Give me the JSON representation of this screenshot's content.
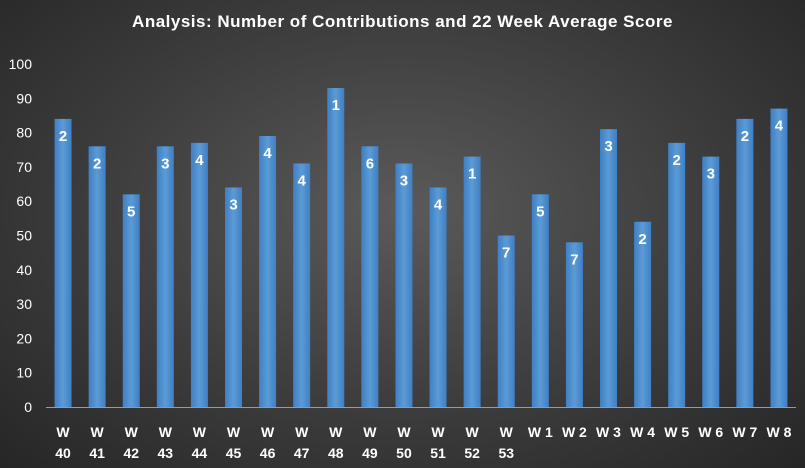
{
  "chart_data": {
    "type": "bar",
    "title": "Analysis:  Number  of  Contributions  and  22  Week  Average  Score",
    "categories": [
      "W 40",
      "W 41",
      "W 42",
      "W 43",
      "W 44",
      "W 45",
      "W 46",
      "W 47",
      "W 48",
      "W 49",
      "W 50",
      "W 51",
      "W 52",
      "W 53",
      "W 1",
      "W 2",
      "W 3",
      "W 4",
      "W 5",
      "W 6",
      "W 7",
      "W 8"
    ],
    "tick_lines": [
      [
        "W",
        "40"
      ],
      [
        "W",
        "41"
      ],
      [
        "W",
        "42"
      ],
      [
        "W",
        "43"
      ],
      [
        "W",
        "44"
      ],
      [
        "W",
        "45"
      ],
      [
        "W",
        "46"
      ],
      [
        "W",
        "47"
      ],
      [
        "W",
        "48"
      ],
      [
        "W",
        "49"
      ],
      [
        "W",
        "50"
      ],
      [
        "W",
        "51"
      ],
      [
        "W",
        "52"
      ],
      [
        "W",
        "53"
      ],
      [
        "W 1"
      ],
      [
        "W 2"
      ],
      [
        "W 3"
      ],
      [
        "W 4"
      ],
      [
        "W 5"
      ],
      [
        "W 6"
      ],
      [
        "W 7"
      ],
      [
        "W 8"
      ]
    ],
    "values": [
      84,
      76,
      62,
      76,
      77,
      64,
      79,
      71,
      93,
      76,
      71,
      64,
      73,
      50,
      62,
      48,
      81,
      54,
      77,
      73,
      84,
      87
    ],
    "data_labels": [
      "2",
      "2",
      "5",
      "3",
      "4",
      "3",
      "4",
      "4",
      "1",
      "6",
      "3",
      "4",
      "1",
      "7",
      "5",
      "7",
      "3",
      "2",
      "2",
      "3",
      "2",
      "4"
    ],
    "ylim": [
      0,
      100
    ],
    "yticks": [
      "0",
      "10",
      "20",
      "30",
      "40",
      "50",
      "60",
      "70",
      "80",
      "90",
      "100"
    ],
    "xlabel": "",
    "ylabel": "",
    "grid": false,
    "legend": "none",
    "colors": {
      "bar": "#5b9bd5",
      "bar_dark": "#3f7fc4",
      "text": "#ffffff"
    }
  }
}
